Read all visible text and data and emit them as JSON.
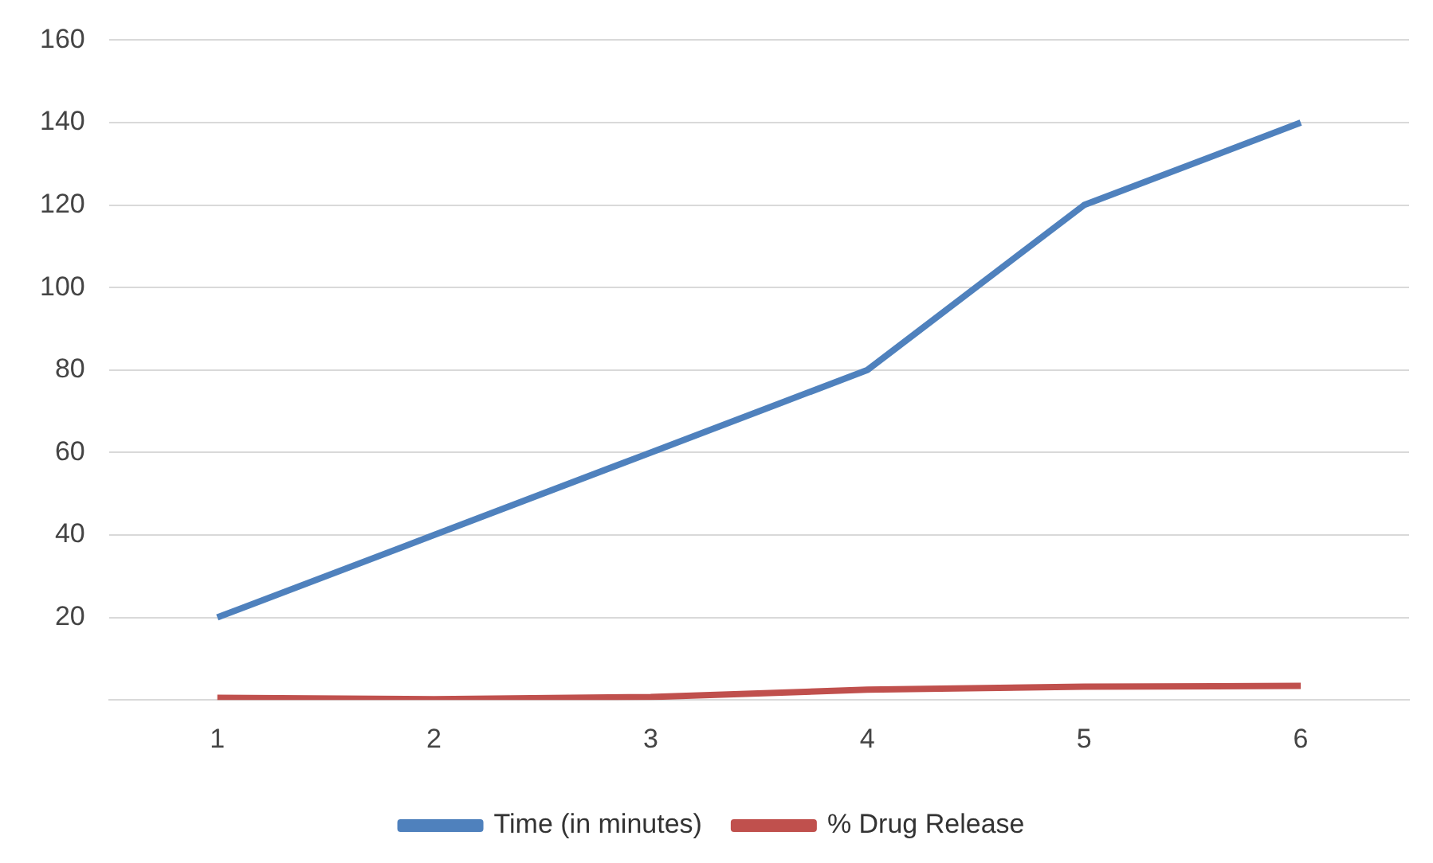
{
  "chart_data": {
    "type": "line",
    "categories": [
      "1",
      "2",
      "3",
      "4",
      "5",
      "6"
    ],
    "series": [
      {
        "name": "Time (in minutes)",
        "color": "#4f81bd",
        "values": [
          20,
          40,
          60,
          80,
          120,
          140
        ]
      },
      {
        "name": "% Drug Release",
        "color": "#c0504d",
        "values": [
          0.5,
          0.2,
          0.7,
          2.5,
          3.2,
          3.4
        ]
      }
    ],
    "ylim": [
      0,
      160
    ],
    "yticks": [
      {
        "value": 0,
        "label": null
      },
      20,
      40,
      60,
      80,
      100,
      120,
      140,
      160
    ],
    "grid": "y",
    "legend": "bottom",
    "marker": "none",
    "line_style": "solid"
  }
}
